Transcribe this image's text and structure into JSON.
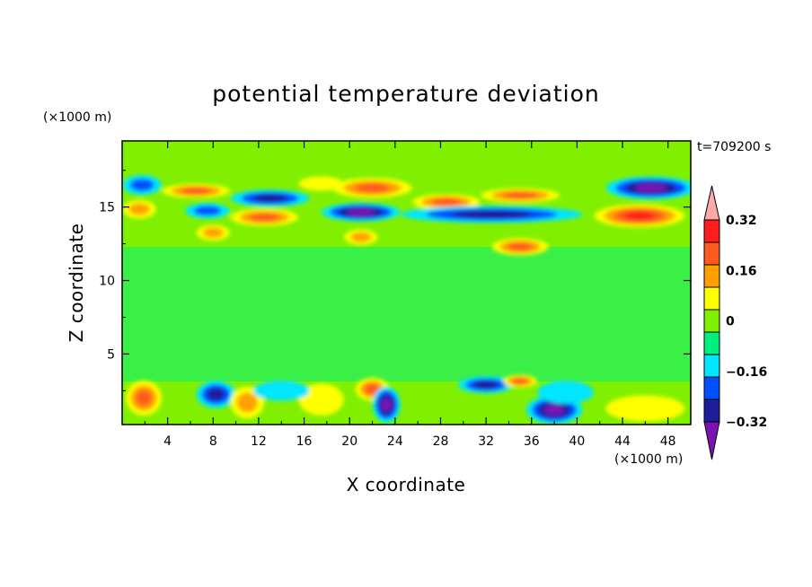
{
  "chart_data": {
    "type": "heatmap",
    "title": "potential temperature deviation",
    "xlabel": "X coordinate",
    "ylabel": "Z coordinate",
    "x_unit": "(×1000 m)",
    "y_unit": "(×1000 m)",
    "time_label": "t=709200 s",
    "xlim": [
      0,
      50
    ],
    "ylim": [
      0.2,
      19.5
    ],
    "x_ticks": [
      "4",
      "8",
      "12",
      "16",
      "20",
      "24",
      "28",
      "32",
      "36",
      "40",
      "44",
      "48"
    ],
    "y_ticks": [
      "5",
      "10",
      "15"
    ],
    "colorbar": {
      "tick_labels": [
        "0.32",
        "0.16",
        "0",
        "−0.16",
        "−0.32"
      ],
      "tick_values": [
        0.32,
        0.16,
        0,
        -0.16,
        -0.32
      ],
      "levels": [
        -0.4,
        -0.32,
        -0.24,
        -0.16,
        -0.08,
        0,
        0.08,
        0.16,
        0.24,
        0.32,
        0.4
      ],
      "colors": [
        "#7a12b4",
        "#1e1e9a",
        "#0050ff",
        "#00e6ff",
        "#00f080",
        "#80f000",
        "#ffff00",
        "#ffa000",
        "#ff5a1e",
        "#ff1e1e",
        "#ffaaaa"
      ]
    },
    "regions": [
      {
        "level": -0.2,
        "x": [
          0.5,
          3
        ],
        "z": [
          16,
          17
        ]
      },
      {
        "level": 0.2,
        "x": [
          0.5,
          2.5
        ],
        "z": [
          14.4,
          15.3
        ]
      },
      {
        "level": 0.28,
        "x": [
          4,
          9
        ],
        "z": [
          15.8,
          16.4
        ]
      },
      {
        "level": -0.25,
        "x": [
          6,
          9
        ],
        "z": [
          14.4,
          15.1
        ]
      },
      {
        "level": -0.3,
        "x": [
          10,
          16
        ],
        "z": [
          15.2,
          16
        ]
      },
      {
        "level": 0.3,
        "x": [
          10,
          15
        ],
        "z": [
          13.9,
          14.7
        ]
      },
      {
        "level": 0.22,
        "x": [
          7,
          9
        ],
        "z": [
          12.9,
          13.6
        ]
      },
      {
        "level": 0.15,
        "x": [
          16,
          19
        ],
        "z": [
          16.3,
          16.9
        ]
      },
      {
        "level": 0.33,
        "x": [
          19,
          25
        ],
        "z": [
          15.8,
          16.8
        ]
      },
      {
        "level": -0.38,
        "x": [
          18,
          24
        ],
        "z": [
          14.2,
          15.1
        ]
      },
      {
        "level": 0.2,
        "x": [
          20,
          22
        ],
        "z": [
          12.6,
          13.3
        ]
      },
      {
        "level": 0.3,
        "x": [
          26,
          31
        ],
        "z": [
          15,
          15.7
        ]
      },
      {
        "level": 0.28,
        "x": [
          32,
          38
        ],
        "z": [
          15.5,
          16.1
        ]
      },
      {
        "level": -0.3,
        "x": [
          25,
          40
        ],
        "z": [
          14.1,
          14.9
        ]
      },
      {
        "level": 0.3,
        "x": [
          33,
          37
        ],
        "z": [
          11.9,
          12.7
        ]
      },
      {
        "level": -0.4,
        "x": [
          43,
          50
        ],
        "z": [
          15.7,
          16.9
        ]
      },
      {
        "level": 0.4,
        "x": [
          42,
          49
        ],
        "z": [
          13.8,
          15
        ]
      },
      {
        "level": 0.28,
        "x": [
          0.8,
          3
        ],
        "z": [
          1,
          3
        ]
      },
      {
        "level": -0.33,
        "x": [
          7,
          9.5
        ],
        "z": [
          1.5,
          3
        ]
      },
      {
        "level": 0.2,
        "x": [
          10,
          12
        ],
        "z": [
          0.8,
          2.6
        ]
      },
      {
        "level": 0.15,
        "x": [
          16,
          19
        ],
        "z": [
          1,
          2.8
        ]
      },
      {
        "level": 0.33,
        "x": [
          21,
          23
        ],
        "z": [
          2,
          3.2
        ]
      },
      {
        "level": -0.4,
        "x": [
          22.5,
          24
        ],
        "z": [
          0.5,
          2.6
        ]
      },
      {
        "level": -0.3,
        "x": [
          30,
          34
        ],
        "z": [
          2.5,
          3.3
        ]
      },
      {
        "level": 0.28,
        "x": [
          34,
          36
        ],
        "z": [
          2.9,
          3.4
        ]
      },
      {
        "level": -0.38,
        "x": [
          36,
          40
        ],
        "z": [
          0.4,
          2
        ]
      },
      {
        "level": 0.15,
        "x": [
          43,
          49
        ],
        "z": [
          0.6,
          2
        ]
      },
      {
        "level": -0.12,
        "x": [
          37,
          41
        ],
        "z": [
          1.8,
          3
        ]
      },
      {
        "level": -0.1,
        "x": [
          12,
          16
        ],
        "z": [
          2,
          3
        ]
      }
    ]
  }
}
